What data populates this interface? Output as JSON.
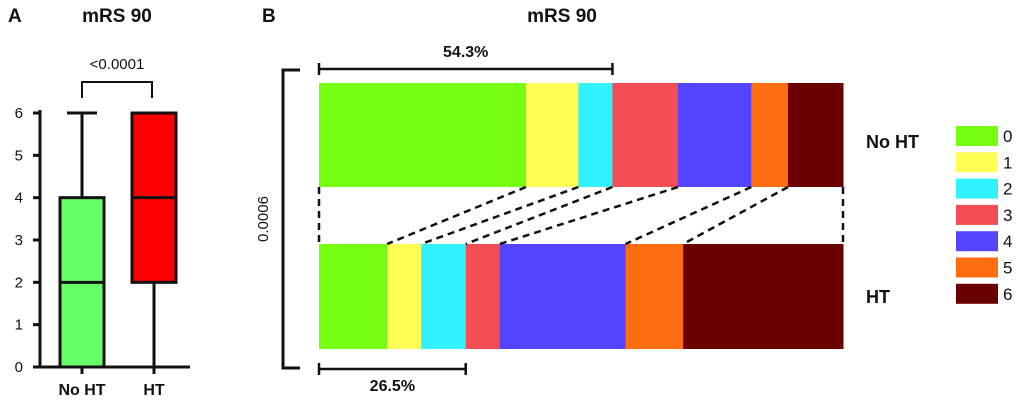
{
  "panels": {
    "a_letter": "A",
    "b_letter": "B"
  },
  "chart_data": [
    {
      "type": "box",
      "title": "mRS 90",
      "categories": [
        "No HT",
        "HT"
      ],
      "boxes": [
        {
          "name": "No HT",
          "min": 0,
          "q1": 0,
          "median": 2,
          "q3": 4,
          "max": 6,
          "color": "#66ff66"
        },
        {
          "name": "HT",
          "min": 0,
          "q1": 2,
          "median": 4,
          "q3": 6,
          "max": 6,
          "color": "#ff0000"
        }
      ],
      "ylim": [
        0,
        6
      ],
      "yticks": [
        "0",
        "1",
        "2",
        "3",
        "4",
        "5",
        "6"
      ],
      "comparison_p": "<0.0001",
      "grid": false
    },
    {
      "type": "bar",
      "stacked": "horizontal-100-percent",
      "title": "mRS 90",
      "categories": [
        "No HT",
        "HT"
      ],
      "series": [
        {
          "name": "0",
          "values": [
            39.5,
            13.0
          ],
          "color": "#77ff11"
        },
        {
          "name": "1",
          "values": [
            10.0,
            6.5
          ],
          "color": "#ffff55"
        },
        {
          "name": "2",
          "values": [
            6.5,
            8.5
          ],
          "color": "#33f2ff"
        },
        {
          "name": "3",
          "values": [
            12.5,
            6.5
          ],
          "color": "#f44d55"
        },
        {
          "name": "4",
          "values": [
            14.0,
            24.0
          ],
          "color": "#5544ff"
        },
        {
          "name": "5",
          "values": [
            7.0,
            11.0
          ],
          "color": "#ff6d11"
        },
        {
          "name": "6",
          "values": [
            10.5,
            30.5
          ],
          "color": "#6b0000"
        }
      ],
      "annotations": {
        "top_bracket": "54.3%",
        "bottom_bracket": "26.5%",
        "side_p": "0.0006"
      },
      "legend_position": "right",
      "grid": false
    }
  ]
}
